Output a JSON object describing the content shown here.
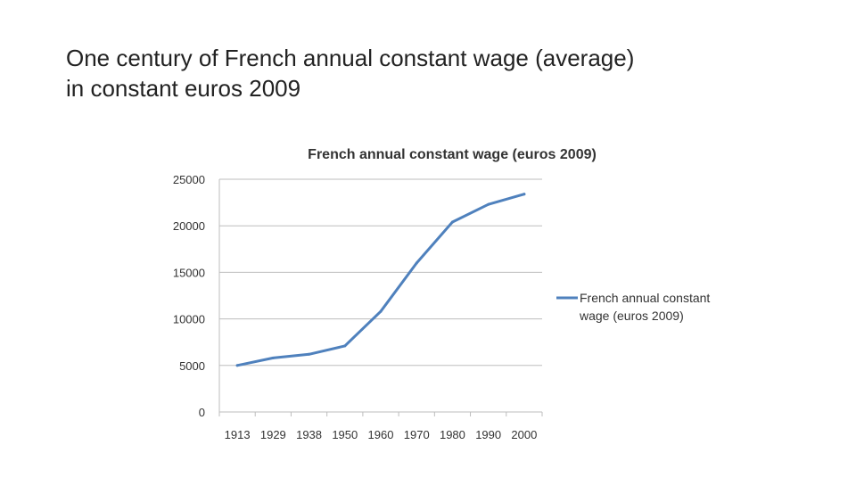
{
  "slide": {
    "title_line1": "One century of French annual constant wage (average)",
    "title_line2": "in constant euros 2009"
  },
  "chart_data": {
    "type": "line",
    "title": "French annual constant wage (euros 2009)",
    "xlabel": "",
    "ylabel": "",
    "categories": [
      "1913",
      "1929",
      "1938",
      "1950",
      "1960",
      "1970",
      "1980",
      "1990",
      "2000"
    ],
    "series": [
      {
        "name": "French annual constant wage (euros 2009)",
        "values": [
          5000,
          5800,
          6200,
          7100,
          10800,
          16000,
          20400,
          22300,
          23400
        ],
        "color": "#4f81bd"
      }
    ],
    "yticks": [
      0,
      5000,
      10000,
      15000,
      20000,
      25000
    ],
    "ylim": [
      0,
      25000
    ],
    "grid": true,
    "legend_position": "right"
  }
}
